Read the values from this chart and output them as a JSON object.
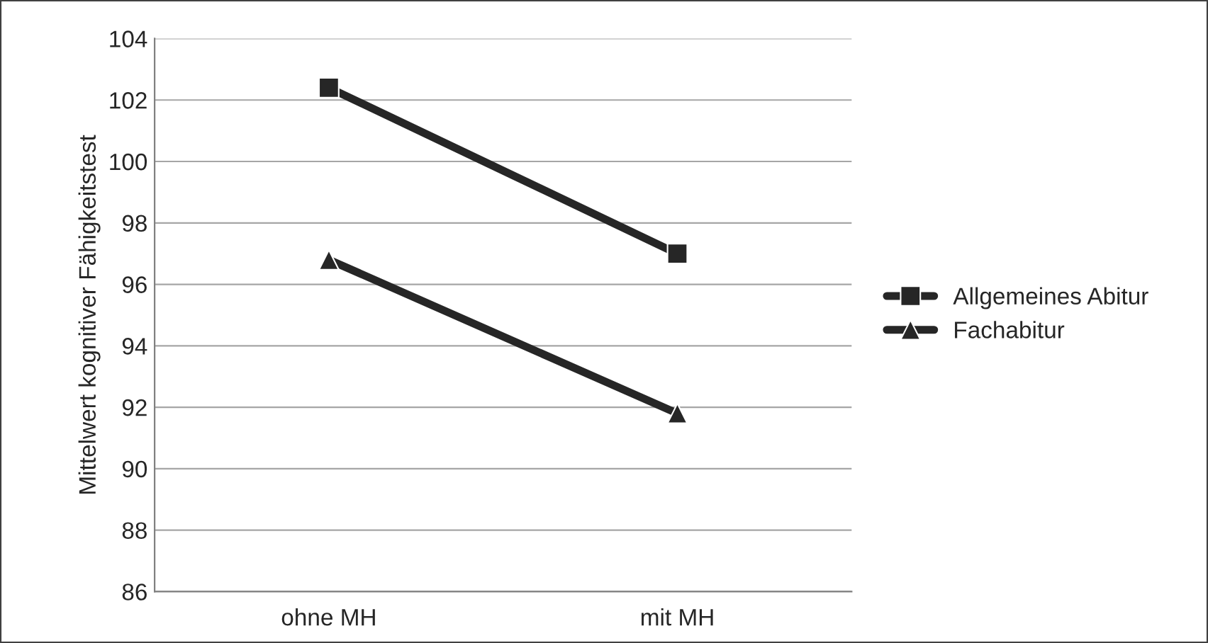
{
  "chart_data": {
    "type": "line",
    "ylabel": "Mittelwert kognitiver Fähigkeitstest",
    "categories": [
      "ohne MH",
      "mit MH"
    ],
    "series": [
      {
        "name": "Allgemeines Abitur",
        "color": "#262626",
        "values": [
          102.4,
          97.0
        ],
        "marker": "square"
      },
      {
        "name": "Fachabitur",
        "color": "#262626",
        "values": [
          96.8,
          91.8
        ],
        "marker": "triangle"
      }
    ],
    "ylim": [
      86,
      104
    ],
    "yticks": [
      86,
      88,
      90,
      92,
      94,
      96,
      98,
      100,
      102,
      104
    ],
    "grid": "y",
    "legend": "right",
    "line_style": "solid"
  }
}
